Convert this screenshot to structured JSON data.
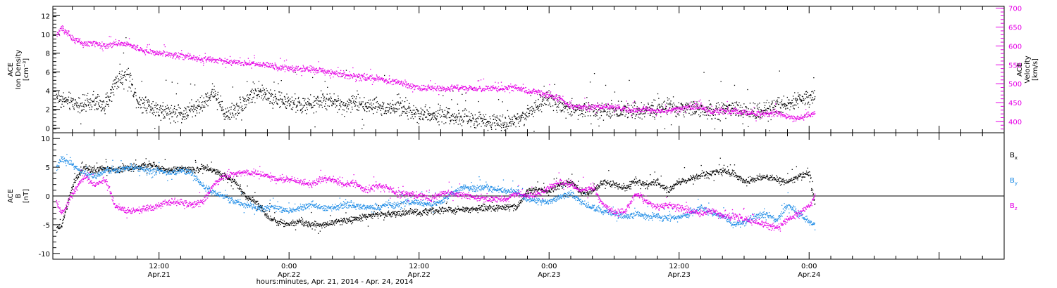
{
  "figure": {
    "xlabel": "hours:minutes, Apr. 21, 2014 - Apr. 24, 2014",
    "colors": {
      "black": "#000000",
      "magenta": "#e600e6",
      "blue": "#1e8ce6"
    }
  },
  "chart_data": [
    {
      "type": "scatter",
      "name": "top-panel",
      "ylabel": [
        "ACE",
        "Ion Density",
        "[cm⁻³]"
      ],
      "ylabel_right": [
        "ACE",
        "Velocity",
        "[km/s]"
      ],
      "x_unit": "hours since Apr. 21, 2014 00:00",
      "xlim": [
        2.2,
        90.0
      ],
      "ylim": [
        -0.5,
        13.0
      ],
      "ylim_right": [
        370,
        705
      ],
      "yticks": [
        0,
        2,
        4,
        6,
        8,
        10,
        12
      ],
      "yticks_right": [
        400,
        450,
        500,
        550,
        600,
        650,
        700
      ],
      "xticks": [
        {
          "x": 12,
          "time": "12:00",
          "date": "Apr.21"
        },
        {
          "x": 24,
          "time": "0:00",
          "date": "Apr.22"
        },
        {
          "x": 36,
          "time": "12:00",
          "date": "Apr.22"
        },
        {
          "x": 48,
          "time": "0:00",
          "date": "Apr.23"
        },
        {
          "x": 60,
          "time": "12:00",
          "date": "Apr.23"
        },
        {
          "x": 72,
          "time": "0:00",
          "date": "Apr.24"
        }
      ],
      "grid": false,
      "series": [
        {
          "color": "black",
          "axis": "left",
          "x": [
            2.5,
            3,
            4,
            5,
            6,
            7,
            8,
            9,
            10,
            11,
            12,
            13,
            14,
            15,
            16,
            17,
            18,
            19,
            20,
            21,
            22,
            23,
            24,
            25,
            26,
            27,
            28,
            29,
            30,
            31,
            32,
            33,
            34,
            35,
            36,
            37,
            38,
            39,
            40,
            41,
            42,
            43,
            44,
            45,
            46,
            47,
            48,
            49,
            50,
            51,
            52,
            53,
            54,
            55,
            56,
            57,
            58,
            59,
            60,
            61,
            62,
            63,
            64,
            65,
            66,
            67,
            68,
            69,
            70,
            71,
            72,
            72.5
          ],
          "y": [
            3.5,
            3.0,
            2.8,
            2.5,
            2.8,
            2.5,
            5.0,
            6.0,
            3.0,
            2.5,
            2.0,
            1.8,
            1.5,
            2.0,
            2.5,
            4.0,
            1.5,
            2.0,
            3.0,
            4.0,
            3.5,
            3.0,
            2.8,
            2.5,
            2.5,
            3.0,
            2.8,
            2.5,
            2.8,
            2.5,
            2.5,
            2.0,
            2.5,
            2.0,
            1.6,
            1.5,
            1.6,
            1.4,
            1.2,
            0.9,
            0.8,
            0.8,
            0.8,
            1.0,
            1.6,
            2.5,
            3.0,
            2.5,
            2.2,
            2.0,
            2.2,
            2.0,
            1.8,
            2.0,
            2.0,
            2.0,
            2.2,
            2.3,
            2.0,
            2.2,
            2.0,
            1.8,
            2.0,
            2.0,
            1.7,
            1.8,
            2.0,
            2.4,
            2.8,
            3.0,
            3.2,
            3.5
          ]
        },
        {
          "color": "magenta",
          "axis": "right",
          "x": [
            2.5,
            3,
            4,
            5,
            6,
            7,
            8,
            9,
            10,
            11,
            12,
            13,
            14,
            15,
            16,
            17,
            18,
            19,
            20,
            21,
            22,
            23,
            24,
            25,
            26,
            27,
            28,
            29,
            30,
            31,
            32,
            33,
            34,
            35,
            36,
            37,
            38,
            39,
            40,
            41,
            42,
            43,
            44,
            45,
            46,
            47,
            48,
            49,
            50,
            51,
            52,
            53,
            54,
            55,
            56,
            57,
            58,
            59,
            60,
            61,
            62,
            63,
            64,
            65,
            66,
            67,
            68,
            69,
            70,
            71,
            72,
            72.5
          ],
          "y": [
            630,
            650,
            620,
            605,
            610,
            600,
            610,
            605,
            595,
            585,
            580,
            578,
            575,
            570,
            565,
            565,
            560,
            558,
            555,
            552,
            550,
            545,
            542,
            540,
            538,
            535,
            530,
            525,
            522,
            518,
            515,
            508,
            505,
            495,
            490,
            490,
            488,
            490,
            490,
            488,
            488,
            488,
            490,
            490,
            482,
            478,
            470,
            462,
            440,
            440,
            438,
            440,
            438,
            435,
            430,
            432,
            428,
            430,
            436,
            440,
            438,
            425,
            430,
            428,
            425,
            422,
            420,
            425,
            412,
            410,
            420,
            424
          ]
        }
      ]
    },
    {
      "type": "scatter",
      "name": "bottom-panel",
      "ylabel": [
        "ACE",
        "B",
        "[nT]"
      ],
      "x_unit": "hours since Apr. 21, 2014 00:00",
      "xlim": [
        2.2,
        90.0
      ],
      "ylim": [
        -11,
        11
      ],
      "yticks": [
        -10,
        -5,
        0,
        5,
        10
      ],
      "zero_line": true,
      "grid": false,
      "legend": [
        "Bx",
        "By",
        "Bz"
      ],
      "legend_position": "right",
      "series": [
        {
          "name": "Bx",
          "color": "black",
          "x": [
            2.5,
            3,
            4,
            5,
            6,
            7,
            8,
            9,
            10,
            11,
            12,
            13,
            14,
            15,
            16,
            17,
            18,
            19,
            20,
            21,
            22,
            23,
            24,
            25,
            26,
            27,
            28,
            29,
            30,
            31,
            32,
            33,
            34,
            35,
            36,
            37,
            38,
            39,
            40,
            41,
            42,
            43,
            44,
            45,
            46,
            47,
            48,
            49,
            50,
            51,
            52,
            53,
            54,
            55,
            56,
            57,
            58,
            59,
            60,
            61,
            62,
            63,
            64,
            65,
            66,
            67,
            68,
            69,
            70,
            71,
            72,
            72.5
          ],
          "y": [
            -6.0,
            -5.0,
            2.0,
            5.0,
            4.5,
            5.0,
            4.5,
            5.0,
            5.0,
            5.5,
            5.0,
            4.5,
            5.0,
            4.5,
            5.0,
            4.5,
            3.5,
            2.5,
            0.0,
            -1.0,
            -3.5,
            -4.5,
            -4.8,
            -4.5,
            -4.8,
            -5.0,
            -4.5,
            -4.2,
            -4.0,
            -3.5,
            -3.2,
            -3.0,
            -3.0,
            -2.8,
            -2.8,
            -2.5,
            -2.5,
            -2.4,
            -2.3,
            -2.2,
            -2.0,
            -2.0,
            -2.0,
            -1.8,
            1.0,
            1.2,
            0.8,
            2.0,
            2.5,
            0.5,
            1.0,
            2.5,
            2.0,
            1.5,
            2.5,
            2.0,
            2.5,
            1.0,
            2.5,
            3.0,
            3.5,
            4.0,
            4.5,
            4.0,
            2.5,
            3.0,
            3.5,
            3.0,
            2.5,
            3.5,
            4.0,
            -1.5
          ]
        },
        {
          "name": "By",
          "color": "blue",
          "x": [
            2.5,
            3,
            4,
            5,
            6,
            7,
            8,
            9,
            10,
            11,
            12,
            13,
            14,
            15,
            16,
            17,
            18,
            19,
            20,
            21,
            22,
            23,
            24,
            25,
            26,
            27,
            28,
            29,
            30,
            31,
            32,
            33,
            34,
            35,
            36,
            37,
            38,
            39,
            40,
            41,
            42,
            43,
            44,
            45,
            46,
            47,
            48,
            49,
            50,
            51,
            52,
            53,
            54,
            55,
            56,
            57,
            58,
            59,
            60,
            61,
            62,
            63,
            64,
            65,
            66,
            67,
            68,
            69,
            70,
            71,
            72,
            72.5
          ],
          "y": [
            5.0,
            6.5,
            5.5,
            4.0,
            3.5,
            4.5,
            4.5,
            5.0,
            5.0,
            4.5,
            4.5,
            4.0,
            4.5,
            4.0,
            2.0,
            0.5,
            0.0,
            -1.0,
            -1.5,
            -2.0,
            -2.0,
            -2.0,
            -2.5,
            -2.0,
            -1.5,
            -2.0,
            -2.0,
            -1.5,
            -1.5,
            -1.8,
            -2.0,
            -1.5,
            -1.5,
            -1.0,
            -1.0,
            -1.5,
            -1.0,
            0.5,
            1.5,
            1.5,
            1.5,
            1.2,
            1.0,
            0.8,
            -0.5,
            -0.8,
            -1.0,
            0.0,
            0.5,
            -1.0,
            -2.0,
            -2.5,
            -3.0,
            -3.5,
            -3.0,
            -3.5,
            -3.5,
            -4.0,
            -3.5,
            -3.0,
            -2.0,
            -3.0,
            -3.5,
            -5.0,
            -4.5,
            -3.5,
            -3.0,
            -4.0,
            -1.5,
            -3.0,
            -4.5,
            -5.2
          ]
        },
        {
          "name": "Bz",
          "color": "magenta",
          "x": [
            2.5,
            3,
            4,
            5,
            6,
            7,
            8,
            9,
            10,
            11,
            12,
            13,
            14,
            15,
            16,
            17,
            18,
            19,
            20,
            21,
            22,
            23,
            24,
            25,
            26,
            27,
            28,
            29,
            30,
            31,
            32,
            33,
            34,
            35,
            36,
            37,
            38,
            39,
            40,
            41,
            42,
            43,
            44,
            45,
            46,
            47,
            48,
            49,
            50,
            51,
            52,
            53,
            54,
            55,
            56,
            57,
            58,
            59,
            60,
            61,
            62,
            63,
            64,
            65,
            66,
            67,
            68,
            69,
            70,
            71,
            72,
            72.5
          ],
          "y": [
            -1.0,
            -3.0,
            0.5,
            3.5,
            2.0,
            3.0,
            -2.0,
            -2.5,
            -2.5,
            -2.0,
            -1.5,
            -1.0,
            -1.0,
            -1.5,
            -1.0,
            2.0,
            3.5,
            4.0,
            4.2,
            4.0,
            3.5,
            3.0,
            3.0,
            2.5,
            2.0,
            3.0,
            3.0,
            2.0,
            2.5,
            1.0,
            2.0,
            1.5,
            0.5,
            0.5,
            0.0,
            -0.5,
            0.5,
            0.5,
            0.2,
            0.0,
            -0.5,
            -0.5,
            -0.5,
            0.5,
            0.0,
            0.5,
            1.5,
            2.5,
            2.0,
            1.0,
            1.5,
            -1.5,
            -3.0,
            -2.5,
            0.5,
            -1.0,
            -2.0,
            -1.5,
            -2.0,
            -2.5,
            -3.0,
            -2.5,
            -3.5,
            -3.5,
            -4.0,
            -4.5,
            -5.0,
            -5.5,
            -4.0,
            -3.0,
            -1.5,
            0.0
          ]
        }
      ]
    }
  ]
}
